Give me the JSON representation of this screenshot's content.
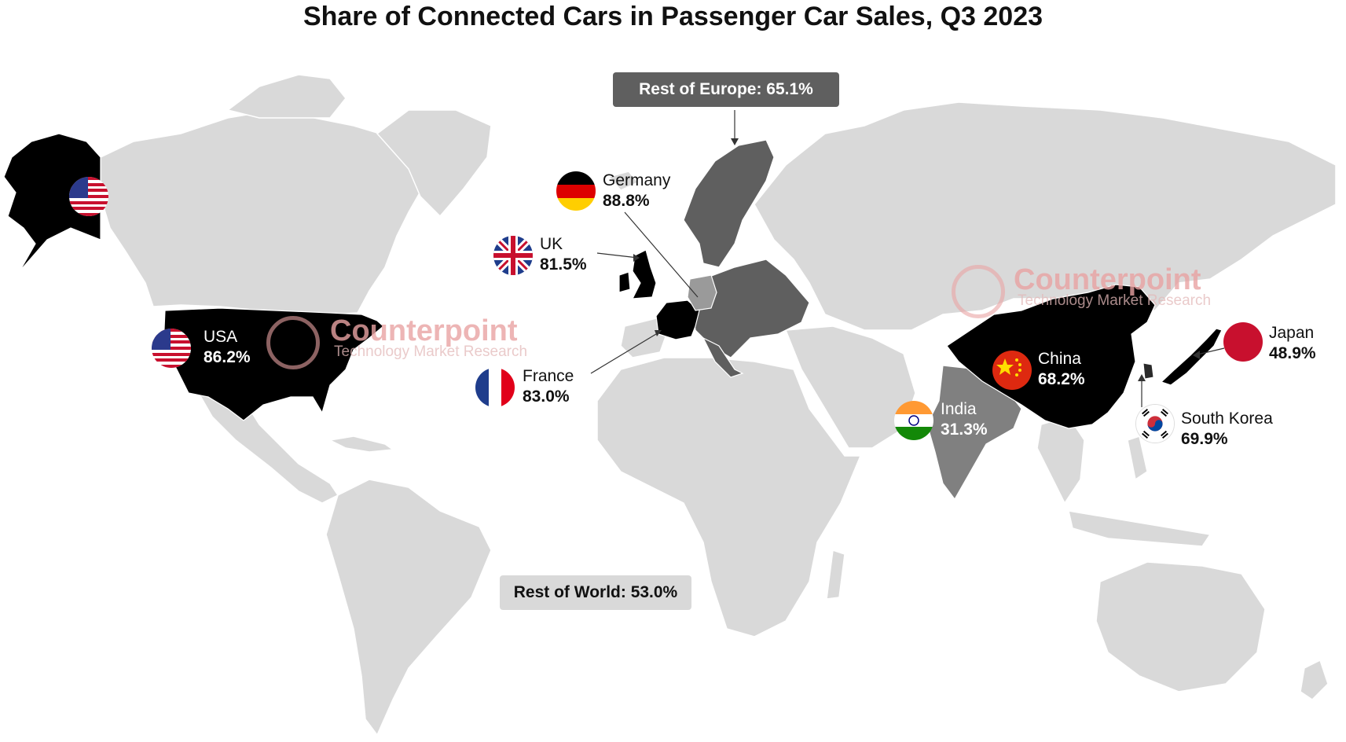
{
  "title": "Share of Connected Cars in Passenger Car Sales, Q3 2023",
  "colors": {
    "land_default": "#d9d9d9",
    "rest_of_europe": "#5f5f5f",
    "india": "#808080",
    "highlight": "#000000",
    "rest_of_europe_box": "#5f5f5f",
    "rest_of_world_box": "#d9d9d9"
  },
  "rest_of_europe_label": "Rest of Europe: 65.1%",
  "rest_of_world_label": "Rest of World: 53.0%",
  "markets": [
    {
      "name": "USA",
      "value_label": "86.2%",
      "value": 86.2,
      "flag": "us-flag-icon"
    },
    {
      "name": "Germany",
      "value_label": "88.8%",
      "value": 88.8,
      "flag": "germany-flag-icon"
    },
    {
      "name": "UK",
      "value_label": "81.5%",
      "value": 81.5,
      "flag": "uk-flag-icon"
    },
    {
      "name": "France",
      "value_label": "83.0%",
      "value": 83.0,
      "flag": "france-flag-icon"
    },
    {
      "name": "China",
      "value_label": "68.2%",
      "value": 68.2,
      "flag": "china-flag-icon"
    },
    {
      "name": "India",
      "value_label": "31.3%",
      "value": 31.3,
      "flag": "india-flag-icon"
    },
    {
      "name": "Japan",
      "value_label": "48.9%",
      "value": 48.9,
      "flag": "japan-flag-icon"
    },
    {
      "name": "South Korea",
      "value_label": "69.9%",
      "value": 69.9,
      "flag": "south-korea-flag-icon"
    }
  ],
  "watermark": {
    "brand": "Counterpoint",
    "tagline": "Technology Market Research"
  }
}
